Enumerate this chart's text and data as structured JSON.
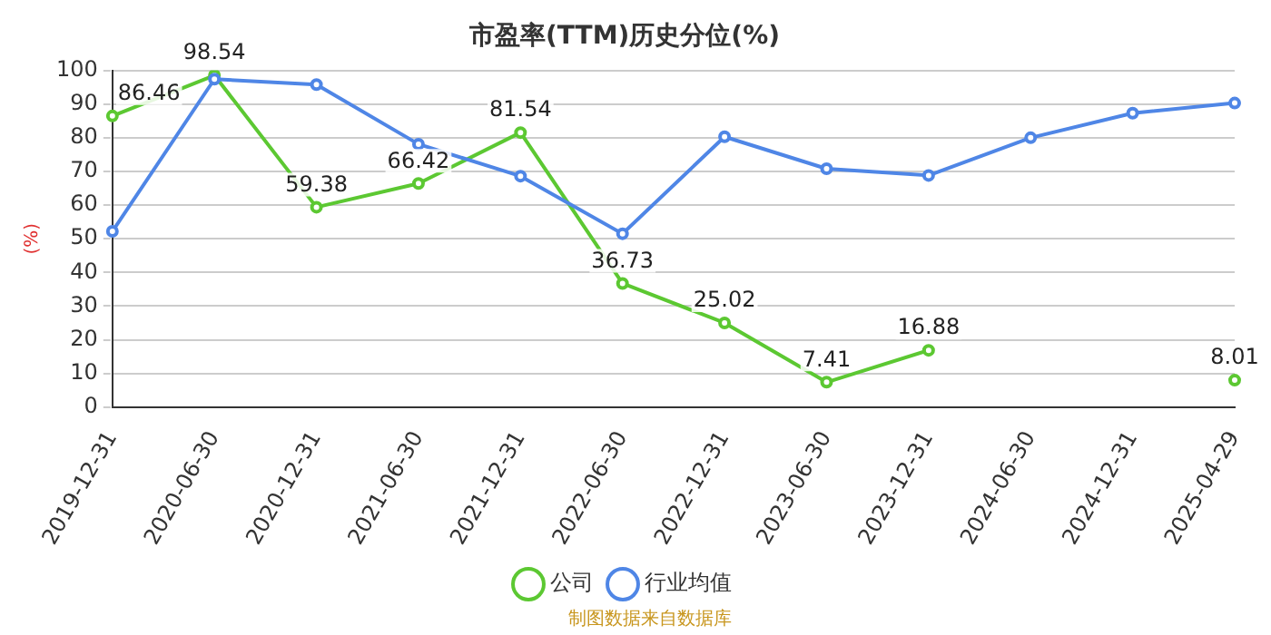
{
  "chart_data": {
    "type": "line",
    "title": "市盈率(TTM)历史分位(%)",
    "ylabel": "(%)",
    "categories": [
      "2019-12-31",
      "2020-06-30",
      "2020-12-31",
      "2021-06-30",
      "2021-12-31",
      "2022-06-30",
      "2022-12-31",
      "2023-06-30",
      "2023-12-31",
      "2024-06-30",
      "2024-12-31",
      "2025-04-29"
    ],
    "series": [
      {
        "name": "公司",
        "color": "#5cc832",
        "values": [
          86.46,
          98.54,
          59.38,
          66.42,
          81.54,
          36.73,
          25.02,
          7.41,
          16.88,
          null,
          null,
          8.01
        ],
        "value_labels": [
          "86.46",
          "98.54",
          "59.38",
          "66.42",
          "81.54",
          "36.73",
          "25.02",
          "7.41",
          "16.88",
          null,
          null,
          "8.01"
        ]
      },
      {
        "name": "行业均值",
        "color": "#4f86e6",
        "values": [
          52.2,
          97.4,
          95.8,
          78.1,
          68.6,
          51.5,
          80.3,
          70.8,
          68.8,
          80,
          87.3,
          90.3
        ]
      }
    ],
    "ylim": [
      0,
      100
    ],
    "yticks": [
      0,
      10,
      20,
      30,
      40,
      50,
      60,
      70,
      80,
      90,
      100
    ],
    "grid": "y",
    "legend": "bottom",
    "marker": "circle",
    "line_style": "solid",
    "annotations": [
      "制图数据来自数据库"
    ]
  }
}
